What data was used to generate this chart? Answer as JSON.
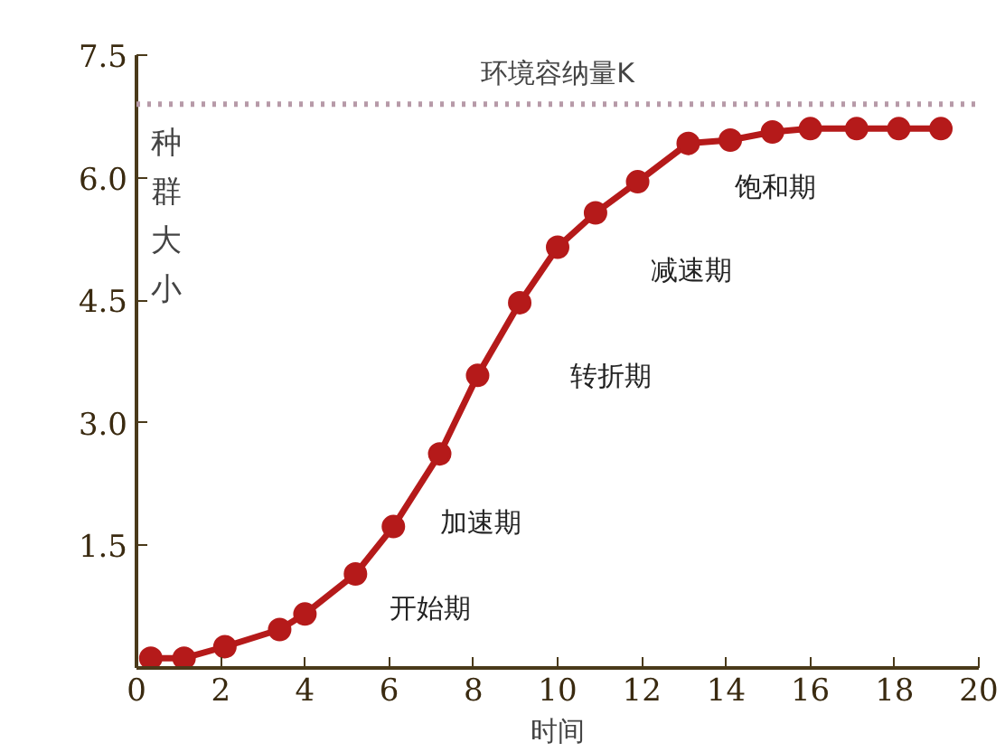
{
  "chart_data": {
    "type": "line",
    "xlabel": "时间",
    "ylabel": "种群大小",
    "x": [
      0.34,
      1.13,
      2.1,
      3.4,
      4.0,
      5.2,
      6.1,
      7.2,
      8.1,
      9.1,
      10.0,
      10.9,
      11.9,
      13.1,
      14.1,
      15.1,
      16.0,
      17.1,
      18.1,
      19.1
    ],
    "series": [
      {
        "color": "#b51a1a",
        "values": [
          0.12,
          0.12,
          0.26,
          0.47,
          0.66,
          1.15,
          1.73,
          2.62,
          3.58,
          4.47,
          5.15,
          5.57,
          5.95,
          6.42,
          6.46,
          6.56,
          6.6,
          6.6,
          6.6,
          6.6
        ]
      }
    ],
    "marker": "circle",
    "line_style": "solid",
    "xlim": [
      0,
      20
    ],
    "xticks": [
      0,
      2,
      4,
      6,
      8,
      10,
      12,
      14,
      16,
      18,
      20
    ],
    "ylim": [
      0,
      7.5
    ],
    "yticks": [
      {
        "value": 0,
        "label": null
      },
      1.5,
      {
        "value": 3,
        "label": "3.0"
      },
      4.5,
      {
        "value": 6,
        "label": "6.0"
      },
      7.5
    ],
    "ref_lines": [
      {
        "axis": "y",
        "value": 6.9,
        "label": "环境容纳量K",
        "color": "#b79aa8",
        "line_style": "dotted"
      }
    ],
    "annotations": [
      "开始期",
      "加速期",
      "转折期",
      "减速期",
      "饱和期"
    ],
    "grid": false
  }
}
